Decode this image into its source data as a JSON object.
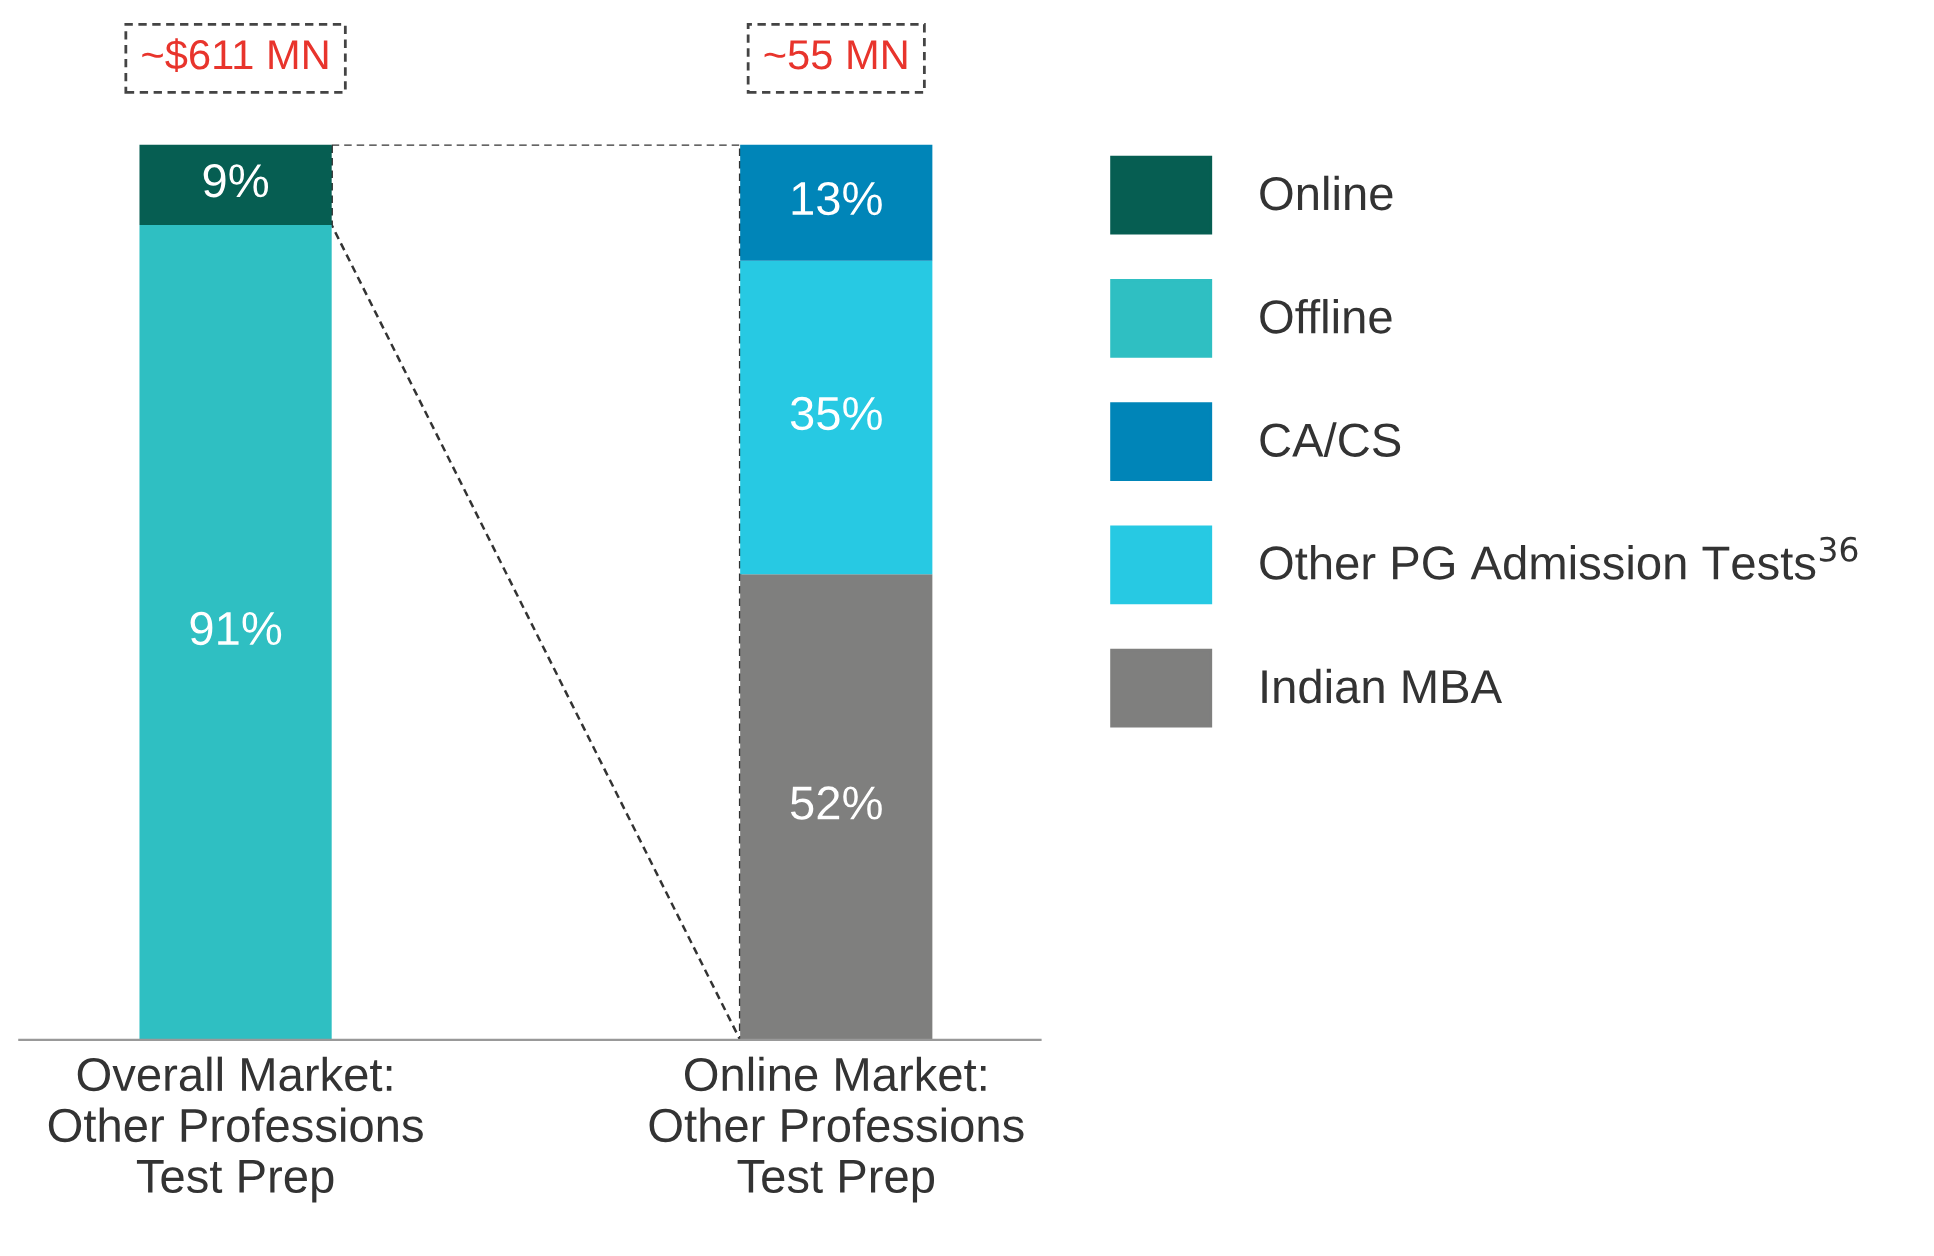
{
  "chart_data": {
    "type": "bar",
    "stacked": true,
    "categories": [
      "Overall Market:\nOther Professions\nTest Prep",
      "Online Market:\nOther Professions\nTest Prep"
    ],
    "series": [
      {
        "name": "Offline",
        "color": "#2fbfc2",
        "values": [
          91,
          null
        ],
        "value_labels": [
          "91%",
          null
        ]
      },
      {
        "name": "Online",
        "color": "#065e52",
        "values": [
          9,
          null
        ],
        "value_labels": [
          "9%",
          null
        ]
      },
      {
        "name": "Indian MBA",
        "color": "#7f7f7e",
        "values": [
          null,
          52
        ],
        "value_labels": [
          null,
          "52%"
        ]
      },
      {
        "name": "Other PG Admission Tests$^{36}$",
        "color": "#27c9e3",
        "values": [
          null,
          35
        ],
        "value_labels": [
          null,
          "35%"
        ]
      },
      {
        "name": "CA/CS",
        "color": "#0085b8",
        "values": [
          null,
          13
        ],
        "value_labels": [
          null,
          "13%"
        ]
      }
    ],
    "annotations": [
      "~$611 MN",
      "~55 MN"
    ],
    "tick_labels": "x",
    "legend": "right",
    "grid": false
  }
}
